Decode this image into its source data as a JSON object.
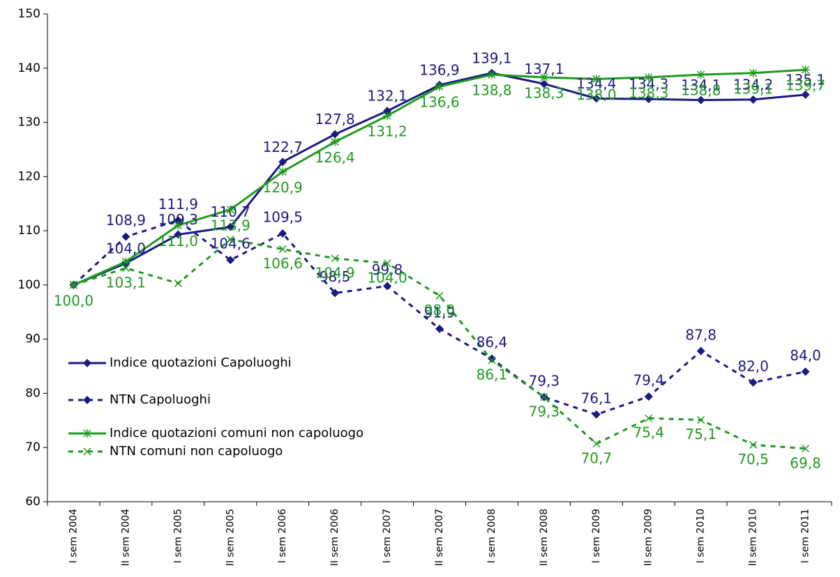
{
  "chart_data": {
    "type": "line",
    "categories": [
      "I sem 2004",
      "II sem 2004",
      "I sem 2005",
      "II sem 2005",
      "I sem 2006",
      "II sem 2006",
      "I sem 2007",
      "II sem 2007",
      "I sem 2008",
      "II sem 2008",
      "I sem 2009",
      "II sem 2009",
      "I sem 2010",
      "II sem 2010",
      "I sem 2011"
    ],
    "series": [
      {
        "name": "Indice quotazioni Capoluoghi",
        "color": "#1a1a80",
        "dash": false,
        "marker": "diamond",
        "values": [
          100,
          104,
          109.3,
          110.7,
          122.7,
          127.8,
          132.1,
          136.9,
          139.1,
          137.1,
          134.4,
          134.3,
          134.1,
          134.2,
          135.1
        ],
        "value_labels": [
          null,
          "104,0",
          "109,3",
          "110,7",
          "122,7",
          "127,8",
          "132,1",
          "136,9",
          "139,1",
          "137,1",
          "134,4",
          "134,3",
          "134,1",
          "134,2",
          "135,1"
        ]
      },
      {
        "name": "NTN Capoluoghi",
        "color": "#1a1a80",
        "dash": true,
        "marker": "diamond",
        "values": [
          100,
          108.9,
          111.9,
          104.6,
          109.5,
          98.5,
          99.8,
          91.9,
          86.4,
          79.3,
          76.1,
          79.4,
          87.8,
          82.0,
          84.0
        ],
        "value_labels": [
          null,
          "108,9",
          "111,9",
          "104,6",
          "109,5",
          "98,5",
          "99,8",
          "91,9",
          "86,4",
          "79,3",
          "76,1",
          "79,4",
          "87,8",
          "82,0",
          "84,0"
        ]
      },
      {
        "name": "Indice quotazioni comuni non capoluogo",
        "color": "#1f9a1f",
        "dash": false,
        "marker": "star",
        "values": [
          100,
          104.3,
          111.0,
          113.9,
          120.9,
          126.4,
          131.2,
          136.6,
          138.8,
          138.3,
          138.0,
          138.3,
          138.8,
          139.1,
          139.7
        ],
        "value_labels": [
          "100,0",
          null,
          "111,0",
          "113,9",
          "120,9",
          "126,4",
          "131,2",
          "136,6",
          "138,8",
          "138,3",
          "138,0",
          "138,3",
          "138,8",
          "139,1",
          "139,7"
        ]
      },
      {
        "name": "NTN comuni non capoluogo",
        "color": "#1f9a1f",
        "dash": true,
        "marker": "x",
        "values": [
          100,
          103.1,
          100.3,
          108.4,
          106.6,
          104.9,
          104.0,
          98.0,
          86.1,
          79.3,
          70.7,
          75.4,
          75.1,
          70.5,
          69.8
        ],
        "value_labels": [
          null,
          "103,1",
          null,
          null,
          "106,6",
          "104,9",
          "104,0",
          "98,0",
          "86,1",
          "79,3",
          "70,7",
          "75,4",
          "75,1",
          "70,5",
          "69,8"
        ]
      }
    ],
    "ylim": [
      60,
      150
    ],
    "yticks": [
      60,
      70,
      80,
      90,
      100,
      110,
      120,
      130,
      140,
      150
    ],
    "legend": "left"
  }
}
